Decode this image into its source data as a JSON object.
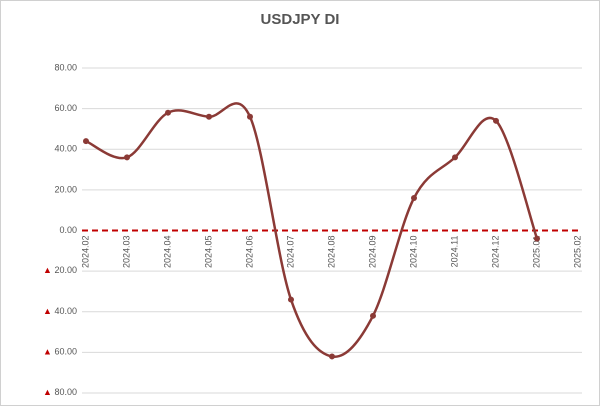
{
  "chart_data": {
    "type": "line",
    "title": "USDJPY DI",
    "categories": [
      "2024.02",
      "2024.03",
      "2024.04",
      "2024.05",
      "2024.06",
      "2024.07",
      "2024.08",
      "2024.09",
      "2024.10",
      "2024.11",
      "2024.12",
      "2025.01",
      "2025.02"
    ],
    "series": [
      {
        "name": "USDJPY DI",
        "color": "#8b3a36",
        "values": [
          44,
          36,
          58,
          56,
          56,
          -34,
          -62,
          -42,
          16,
          36,
          54,
          -4,
          null
        ]
      }
    ],
    "ylim": [
      -80,
      80
    ],
    "yticks": [
      {
        "value": 80,
        "label": "80.00"
      },
      {
        "value": 60,
        "label": "60.00"
      },
      {
        "value": 40,
        "label": "40.00"
      },
      {
        "value": 20,
        "label": "20.00"
      },
      {
        "value": 0,
        "label": "0.00"
      },
      {
        "value": -20,
        "label": "▲ 20.00"
      },
      {
        "value": -40,
        "label": "▲ 40.00"
      },
      {
        "value": -60,
        "label": "▲ 60.00"
      },
      {
        "value": -80,
        "label": "▲ 80.00"
      }
    ],
    "grid": true,
    "zero_line_color": "#c00000"
  }
}
